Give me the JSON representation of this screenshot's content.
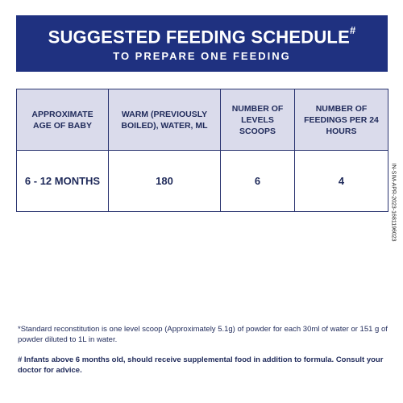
{
  "header": {
    "title": "SUGGESTED FEEDING SCHEDULE",
    "title_mark": "#",
    "subtitle": "TO PREPARE ONE FEEDING"
  },
  "table": {
    "columns": [
      "APPROXIMATE AGE OF BABY",
      "WARM (PREVIOUSLY BOILED), WATER, ML",
      "NUMBER OF LEVELS SCOOPS",
      "NUMBER OF FEEDINGS PER 24 HOURS"
    ],
    "rows": [
      [
        "6 - 12 MONTHS",
        "180",
        "6",
        "4"
      ]
    ]
  },
  "side_code": "IN-SIM-APR-2023-1681196023",
  "notes": {
    "standard": "*Standard reconstitution is one level scoop (Approximately 5.1g) of powder for each 30ml of water or 151 g of powder diluted to 1L in water.",
    "supplement": "# Infants above 6 months old, should receive supplemental food in addition to formula. Consult your doctor for advice."
  },
  "colors": {
    "banner": "#1f3180",
    "header_cell": "#dadbeb",
    "text": "#1f2a5a"
  }
}
